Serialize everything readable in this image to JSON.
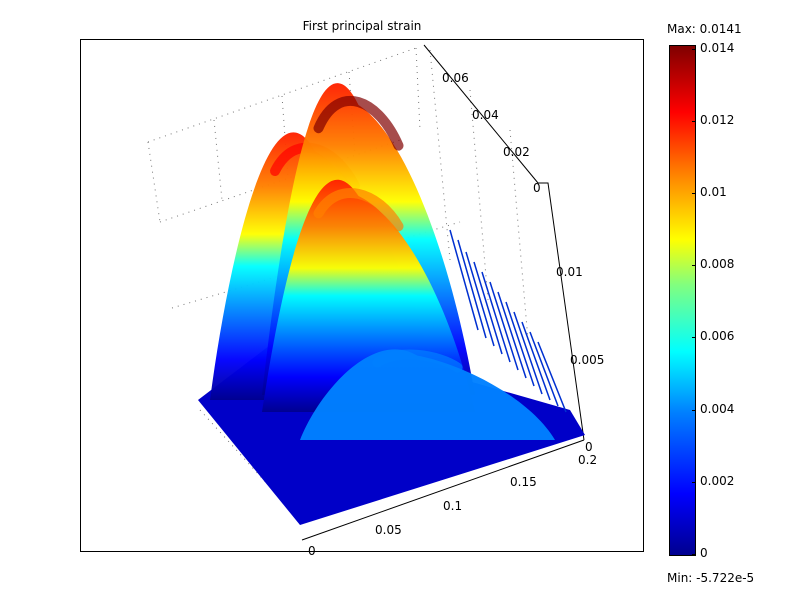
{
  "chart_data": {
    "type": "surface",
    "title": "First principal strain",
    "x_ticks": [
      "0",
      "0.05",
      "0.1",
      "0.15",
      "0.2"
    ],
    "y_ticks": [
      "0",
      "0.02",
      "0.04",
      "0.06"
    ],
    "z_ticks": [
      "0",
      "0.005",
      "0.01"
    ],
    "colorbar": {
      "max_label": "Max: 0.0141",
      "min_label": "Min: -5.722e-5",
      "max": 0.0141,
      "min": -5.722e-05,
      "ticks": [
        "0",
        "0.002",
        "0.004",
        "0.006",
        "0.008",
        "0.01",
        "0.012",
        "0.014"
      ],
      "colormap": [
        "#00008f",
        "#0000ff",
        "#0080ff",
        "#00ffff",
        "#80ff80",
        "#ffff00",
        "#ff8000",
        "#ff0000",
        "#800000"
      ]
    },
    "peaks": [
      {
        "name": "back",
        "height": 0.0121
      },
      {
        "name": "upper-middle",
        "height": 0.0141
      },
      {
        "name": "lower-middle",
        "height": 0.0105
      },
      {
        "name": "front",
        "height": 0.0041
      }
    ],
    "grid": true
  }
}
